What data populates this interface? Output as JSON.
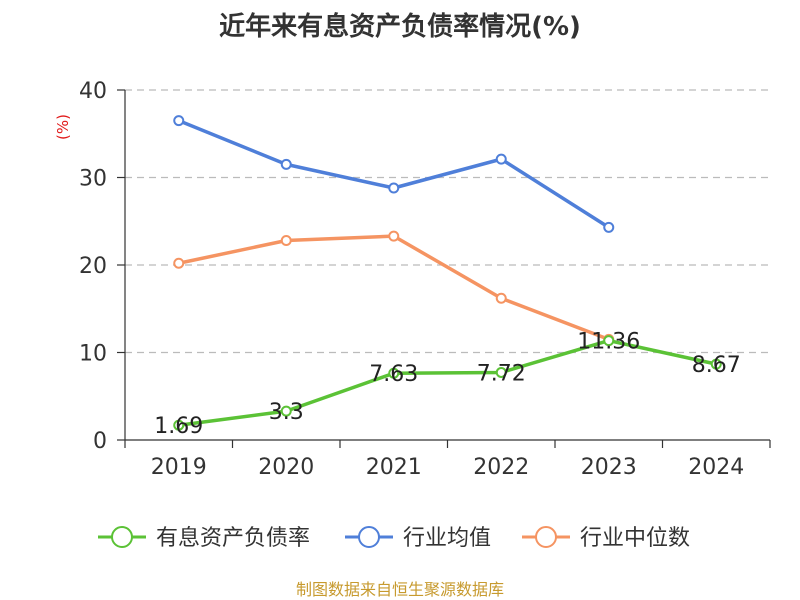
{
  "chart_data": {
    "type": "line",
    "title": "近年来有息资产负债率情况(%)",
    "ylabel": "(%)",
    "xlabel": "",
    "categories": [
      "2019",
      "2020",
      "2021",
      "2022",
      "2023",
      "2024"
    ],
    "ylim": [
      0,
      40
    ],
    "yticks": [
      0,
      10,
      20,
      30,
      40
    ],
    "grid": true,
    "legend_position": "bottom",
    "series": [
      {
        "name": "有息资产负债率",
        "color": "#5bc236",
        "values": [
          1.69,
          3.3,
          7.63,
          7.72,
          11.36,
          8.67
        ],
        "labels": [
          "1.69",
          "3.3",
          "7.63",
          "7.72",
          "11.36",
          "8.67"
        ]
      },
      {
        "name": "行业均值",
        "color": "#4f7fd9",
        "values": [
          36.5,
          31.5,
          28.8,
          32.1,
          24.3,
          null
        ]
      },
      {
        "name": "行业中位数",
        "color": "#f59462",
        "values": [
          20.2,
          22.8,
          23.3,
          16.2,
          11.5,
          null
        ]
      }
    ]
  },
  "unit_color": "#e11a1a",
  "footer": {
    "source": "制图数据来自恒生聚源数据库",
    "color": "#c79a2e"
  }
}
